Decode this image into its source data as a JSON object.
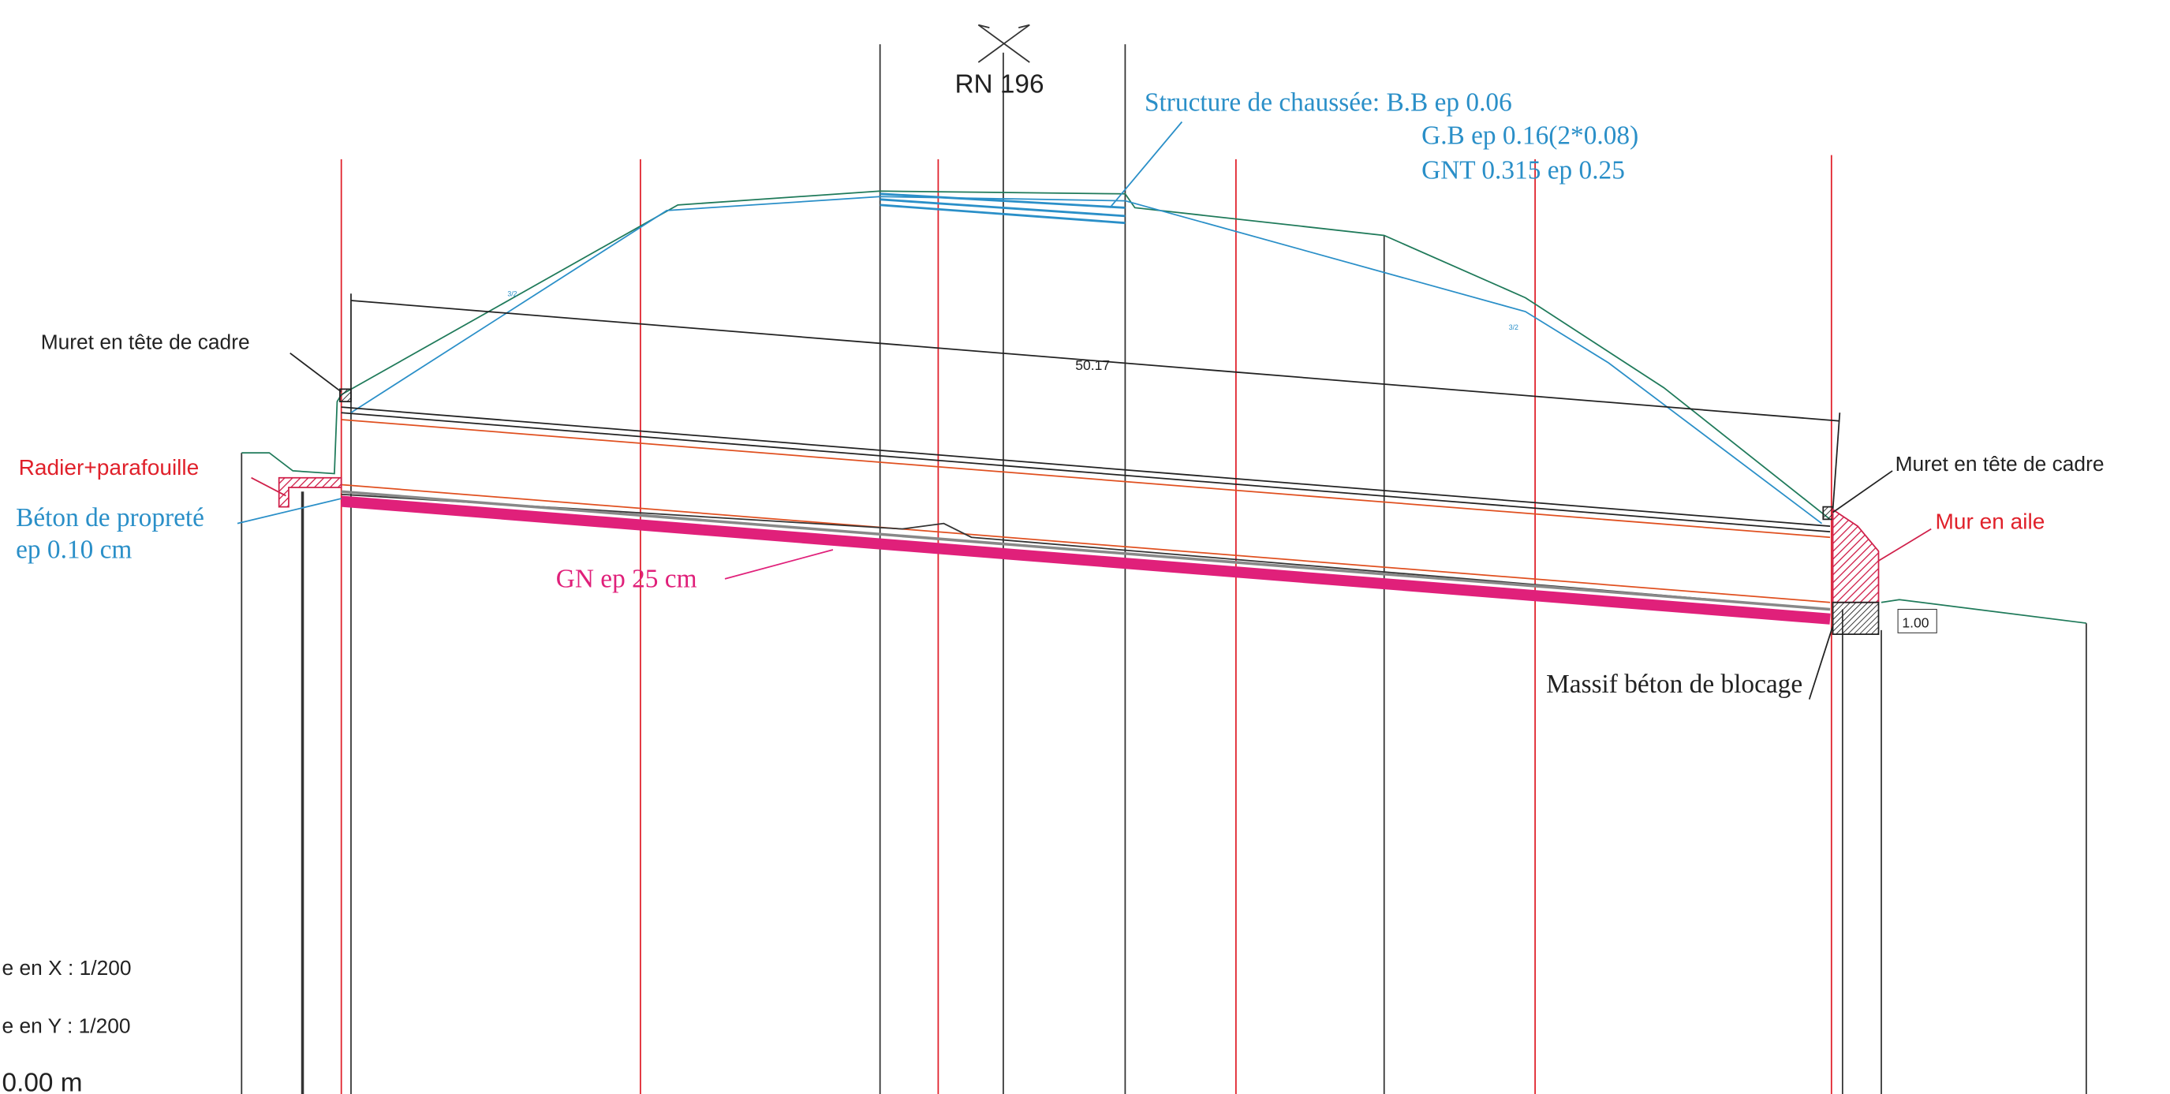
{
  "road": "RN 196",
  "structure": [
    "Structure de chaussée: B.B ep 0.06",
    "G.B ep 0.16(2*0.08)",
    "GNT 0.315 ep 0.25"
  ],
  "muret_left": "Muret en tête de cadre",
  "muret_right": "Muret en tête de cadre",
  "dimension": "50.17",
  "slope_left": "3/2",
  "slope_right": "3/2",
  "radier": "Radier+parafouille",
  "beton": [
    "Béton de propreté",
    "ep 0.10 cm"
  ],
  "gn": "GN ep 25 cm",
  "mur_aile": "Mur en aile",
  "massif_dim": "1.00",
  "massif": "Massif béton de blocage",
  "scale": [
    "e en X : 1/200",
    "e en Y : 1/200",
    "0.00 m"
  ]
}
